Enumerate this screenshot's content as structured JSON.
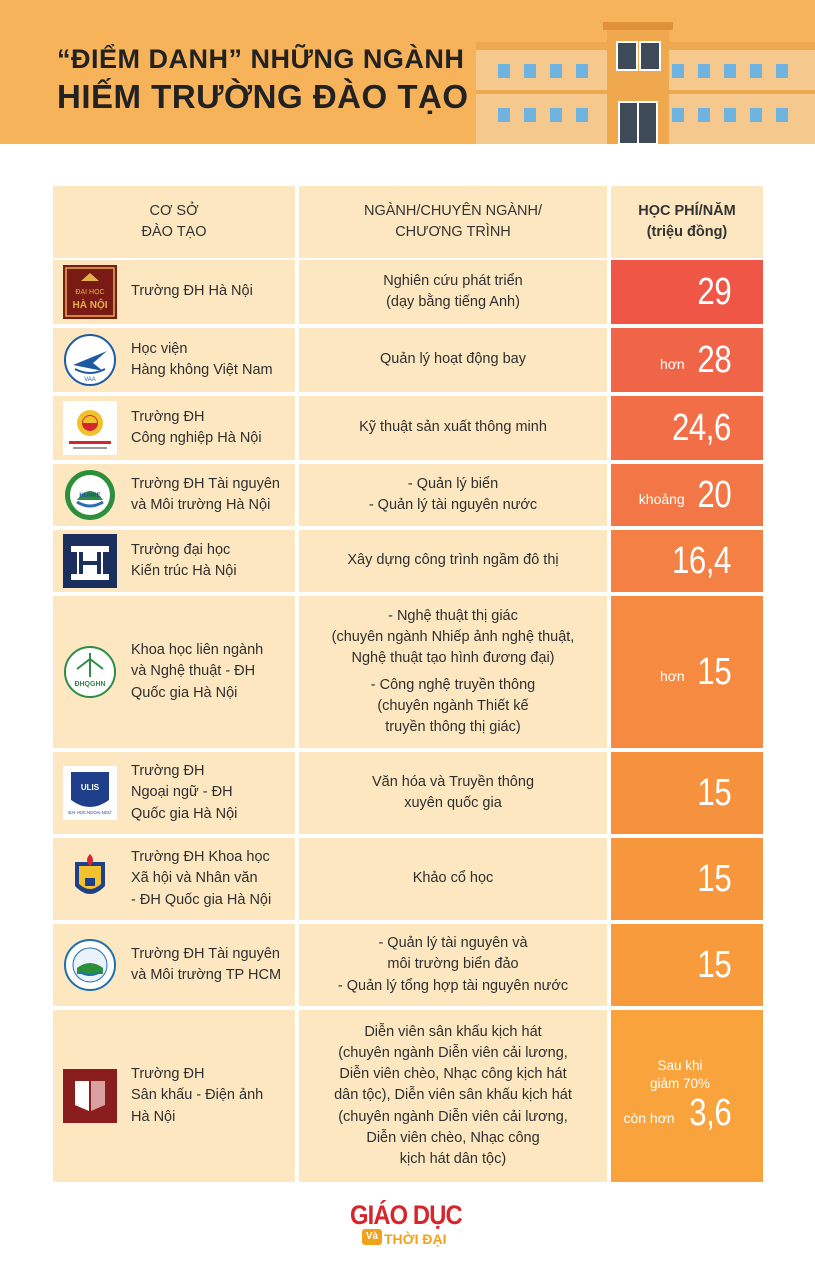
{
  "title": {
    "line1": "“ĐIỂM DANH” NHỮNG NGÀNH",
    "line2": "HIẾM TRƯỜNG ĐÀO TẠO"
  },
  "colors": {
    "header_bg": "#f7b35a",
    "row_bg": "#fde7c1",
    "fee_red": "#ee5a48",
    "fee_orange": "#f58a3f",
    "fee_light": "#f8a23e"
  },
  "table": {
    "headers": {
      "school": [
        "CƠ SỞ",
        "ĐÀO TẠO"
      ],
      "major": [
        "NGÀNH/CHUYÊN NGÀNH/",
        "CHƯƠNG TRÌNH"
      ],
      "fee": [
        "HỌC PHÍ/NĂM",
        "(triệu đồng)"
      ]
    },
    "rows": [
      {
        "school": [
          "Trường ĐH Hà Nội"
        ],
        "major": [
          "Nghiên cứu phát triển",
          "(dạy bằng tiếng Anh)"
        ],
        "fee_prefix": "",
        "fee": "29",
        "logo": "hanoi-university-logo",
        "logo_text": [
          "ĐẠI",
          "HỌC",
          "HÀ NỘI"
        ]
      },
      {
        "school": [
          "Học viện",
          "Hàng không Việt Nam"
        ],
        "major": [
          "Quản lý hoạt động bay"
        ],
        "fee_prefix": "hơn",
        "fee": "28",
        "logo": "aviation-academy-logo",
        "logo_text": [
          "VAA"
        ]
      },
      {
        "school": [
          "Trường ĐH",
          "Công nghiệp Hà Nội"
        ],
        "major": [
          "Kỹ thuật sản xuất thông minh"
        ],
        "fee_prefix": "",
        "fee": "24,6",
        "logo": "haui-logo",
        "logo_text": []
      },
      {
        "school": [
          "Trường ĐH Tài nguyên",
          "và Môi trường Hà Nội"
        ],
        "major": [
          "- Quản lý biển",
          "- Quản lý tài nguyên nước"
        ],
        "fee_prefix": "khoảng",
        "fee": "20",
        "logo": "hunre-logo",
        "logo_text": [
          "HUNRE"
        ]
      },
      {
        "school": [
          "Trường đại học",
          "Kiến trúc Hà Nội"
        ],
        "major": [
          "Xây dựng công trình ngầm đô thị"
        ],
        "fee_prefix": "",
        "fee": "16,4",
        "logo": "architecture-university-logo",
        "logo_text": []
      },
      {
        "school": [
          "Khoa học liên ngành",
          "và Nghệ thuật - ĐH",
          "Quốc gia Hà Nội"
        ],
        "major": [
          "- Nghệ thuật thị giác",
          "(chuyên ngành Nhiếp ảnh nghệ thuật,",
          "Nghệ thuật tạo hình đương đại)",
          "- Công nghệ truyền thông",
          "(chuyên ngành Thiết kế",
          "truyền thông thị giác)"
        ],
        "fee_prefix": "hơn",
        "fee": "15",
        "logo": "vnu-logo",
        "logo_text": [
          "ĐHQGHN"
        ]
      },
      {
        "school": [
          "Trường ĐH",
          "Ngoại ngữ - ĐH",
          "Quốc gia Hà Nội"
        ],
        "major": [
          "Văn hóa và Truyền thông",
          "xuyên quốc gia"
        ],
        "fee_prefix": "",
        "fee": "15",
        "logo": "ulis-logo",
        "logo_text": [
          "ULIS",
          "ĐẠI HỌC NGOẠI NGỮ"
        ]
      },
      {
        "school": [
          "Trường ĐH Khoa học",
          "Xã hội và Nhân văn",
          "- ĐH Quốc gia Hà Nội"
        ],
        "major": [
          "Khảo cổ học"
        ],
        "fee_prefix": "",
        "fee": "15",
        "logo": "ussh-logo",
        "logo_text": []
      },
      {
        "school": [
          "Trường ĐH Tài nguyên",
          "và Môi trường TP HCM"
        ],
        "major": [
          "- Quản lý tài nguyên và",
          "môi trường biển đảo",
          "- Quản lý tổng hợp tài nguyên nước"
        ],
        "fee_prefix": "",
        "fee": "15",
        "logo": "hcmunre-logo",
        "logo_text": []
      },
      {
        "school": [
          "Trường ĐH",
          "Sân khấu - Điện ảnh",
          "Hà Nội"
        ],
        "major": [
          "Diễn viên sân khấu kịch hát",
          "(chuyên ngành Diễn viên cải lương,",
          "Diễn viên chèo, Nhạc công kịch hát",
          "dân tộc), Diễn viên sân khấu kịch hát",
          "(chuyên ngành Diễn viên cải lương,",
          "Diễn viên chèo, Nhạc công",
          "kịch hát dân tộc)"
        ],
        "fee_note": [
          "Sau khi",
          "giảm 70%"
        ],
        "fee_prefix": "còn hơn",
        "fee": "3,6",
        "logo": "theatre-film-university-logo",
        "logo_text": []
      }
    ]
  },
  "brand": {
    "top": "GIÁO DỤC",
    "va": "Và",
    "bottom": "THỜI ĐẠI"
  }
}
